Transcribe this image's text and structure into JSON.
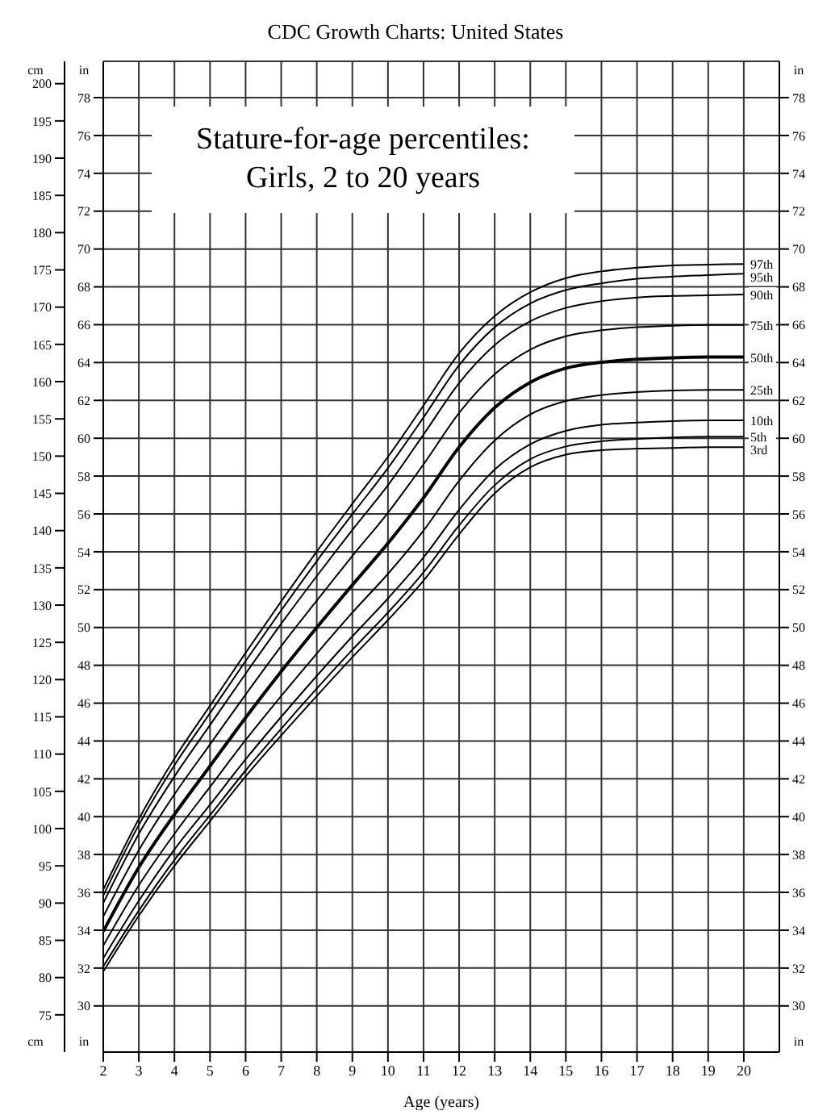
{
  "chart_data": {
    "type": "line",
    "title": "CDC Growth Charts: United States",
    "subtitle": "Stature-for-age percentiles:\nGirls, 2 to 20 years",
    "xlabel": "Age (years)",
    "ylabel": "cm",
    "y2label": "in",
    "y3label": "in",
    "x": [
      2,
      3,
      4,
      5,
      6,
      7,
      8,
      9,
      10,
      11,
      12,
      13,
      14,
      15,
      16,
      17,
      18,
      19,
      20
    ],
    "series": [
      {
        "name": "97th",
        "color": "#000000",
        "values": [
          91.8,
          101.3,
          109.4,
          116.5,
          123.6,
          130.5,
          137.2,
          143.6,
          149.9,
          156.8,
          163.8,
          168.8,
          172,
          173.9,
          174.8,
          175.3,
          175.6,
          175.7,
          175.8
        ]
      },
      {
        "name": "95th",
        "color": "#000000",
        "values": [
          91,
          100.5,
          108.5,
          115.5,
          122.5,
          129.3,
          135.9,
          142.2,
          148.4,
          155.2,
          162.2,
          167.3,
          170.5,
          172.3,
          173.2,
          173.8,
          174.1,
          174.3,
          174.5
        ]
      },
      {
        "name": "90th",
        "color": "#000000",
        "values": [
          90,
          99.3,
          107,
          113.9,
          120.8,
          127.5,
          133.9,
          140.1,
          146.1,
          152.9,
          159.8,
          164.9,
          168.1,
          169.9,
          170.8,
          171.3,
          171.5,
          171.6,
          171.7
        ]
      },
      {
        "name": "75th",
        "color": "#000000",
        "values": [
          88.2,
          97.1,
          104.6,
          111.3,
          118,
          124.5,
          130.6,
          136.6,
          142.4,
          148.9,
          155.8,
          161,
          164.3,
          166.1,
          166.9,
          167.3,
          167.5,
          167.6,
          167.6
        ]
      },
      {
        "name": "50th",
        "color": "#000000",
        "values": [
          86.2,
          94.8,
          101.9,
          108.4,
          114.9,
          121.1,
          127,
          132.7,
          138.3,
          144.4,
          151.2,
          156.5,
          159.9,
          161.8,
          162.6,
          163,
          163.2,
          163.3,
          163.3
        ]
      },
      {
        "name": "25th",
        "color": "#000000",
        "values": [
          84.3,
          92.4,
          99.3,
          105.6,
          111.9,
          117.8,
          123.5,
          129,
          134.2,
          140,
          146.7,
          152.1,
          155.6,
          157.4,
          158.2,
          158.6,
          158.8,
          158.9,
          158.9
        ]
      },
      {
        "name": "10th",
        "color": "#000000",
        "values": [
          82.6,
          90.3,
          97.2,
          103.2,
          109.3,
          115,
          120.5,
          125.8,
          130.9,
          136.4,
          142.8,
          148.2,
          151.6,
          153.4,
          154.2,
          154.5,
          154.7,
          154.8,
          154.8
        ]
      },
      {
        "name": "5th",
        "color": "#000000",
        "values": [
          81.5,
          89,
          95.8,
          101.8,
          107.8,
          113.4,
          118.8,
          124,
          129,
          134.4,
          140.7,
          146.1,
          149.6,
          151.3,
          152,
          152.3,
          152.5,
          152.6,
          152.6
        ]
      },
      {
        "name": "3rd",
        "color": "#000000",
        "values": [
          80.8,
          88.3,
          95,
          101,
          107,
          112.5,
          117.8,
          123,
          128,
          133.3,
          139.5,
          145,
          148.5,
          150.2,
          150.8,
          151,
          151.1,
          151.2,
          151.2
        ]
      }
    ],
    "xlim": [
      2,
      21
    ],
    "xticks": [
      2,
      3,
      4,
      5,
      6,
      7,
      8,
      9,
      10,
      11,
      12,
      13,
      14,
      15,
      16,
      17,
      18,
      19,
      20
    ],
    "ylim": [
      70,
      203
    ],
    "yticks": [
      75,
      80,
      85,
      90,
      95,
      100,
      105,
      110,
      115,
      120,
      125,
      130,
      135,
      140,
      145,
      150,
      155,
      160,
      165,
      170,
      175,
      180,
      185,
      190,
      195,
      200
    ],
    "y2lim": [
      27.56,
      79.92
    ],
    "y2ticks": [
      30,
      32,
      34,
      36,
      38,
      40,
      42,
      44,
      46,
      48,
      50,
      52,
      54,
      56,
      58,
      60,
      62,
      64,
      66,
      68,
      70,
      72,
      74,
      76,
      78
    ],
    "y3lim": [
      27.56,
      79.92
    ],
    "y3ticks": [
      30,
      32,
      34,
      36,
      38,
      40,
      42,
      44,
      46,
      48,
      50,
      52,
      54,
      56,
      58,
      60,
      62,
      64,
      66,
      68,
      70,
      72,
      74,
      76,
      78
    ],
    "grid": true,
    "marker": "none",
    "line_style": "solid"
  }
}
